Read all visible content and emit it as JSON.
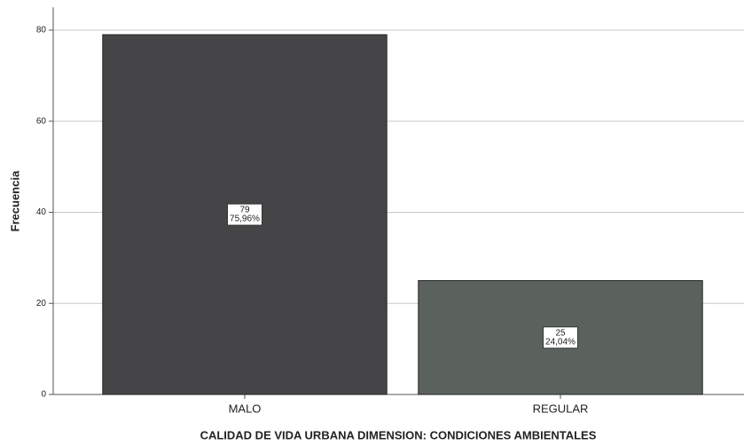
{
  "chart_data": {
    "type": "bar",
    "xlabel": "CALIDAD DE VIDA URBANA DIMENSION: CONDICIONES AMBIENTALES",
    "ylabel": "Frecuencia",
    "categories": [
      "MALO",
      "REGULAR"
    ],
    "values": [
      79,
      25
    ],
    "percent_labels": [
      "75,96%",
      "24,04%"
    ],
    "colors": [
      "#454547",
      "#5b625e"
    ],
    "ylim": [
      0,
      85
    ],
    "yticks": [
      0,
      20,
      40,
      60,
      80
    ],
    "grid": true
  }
}
